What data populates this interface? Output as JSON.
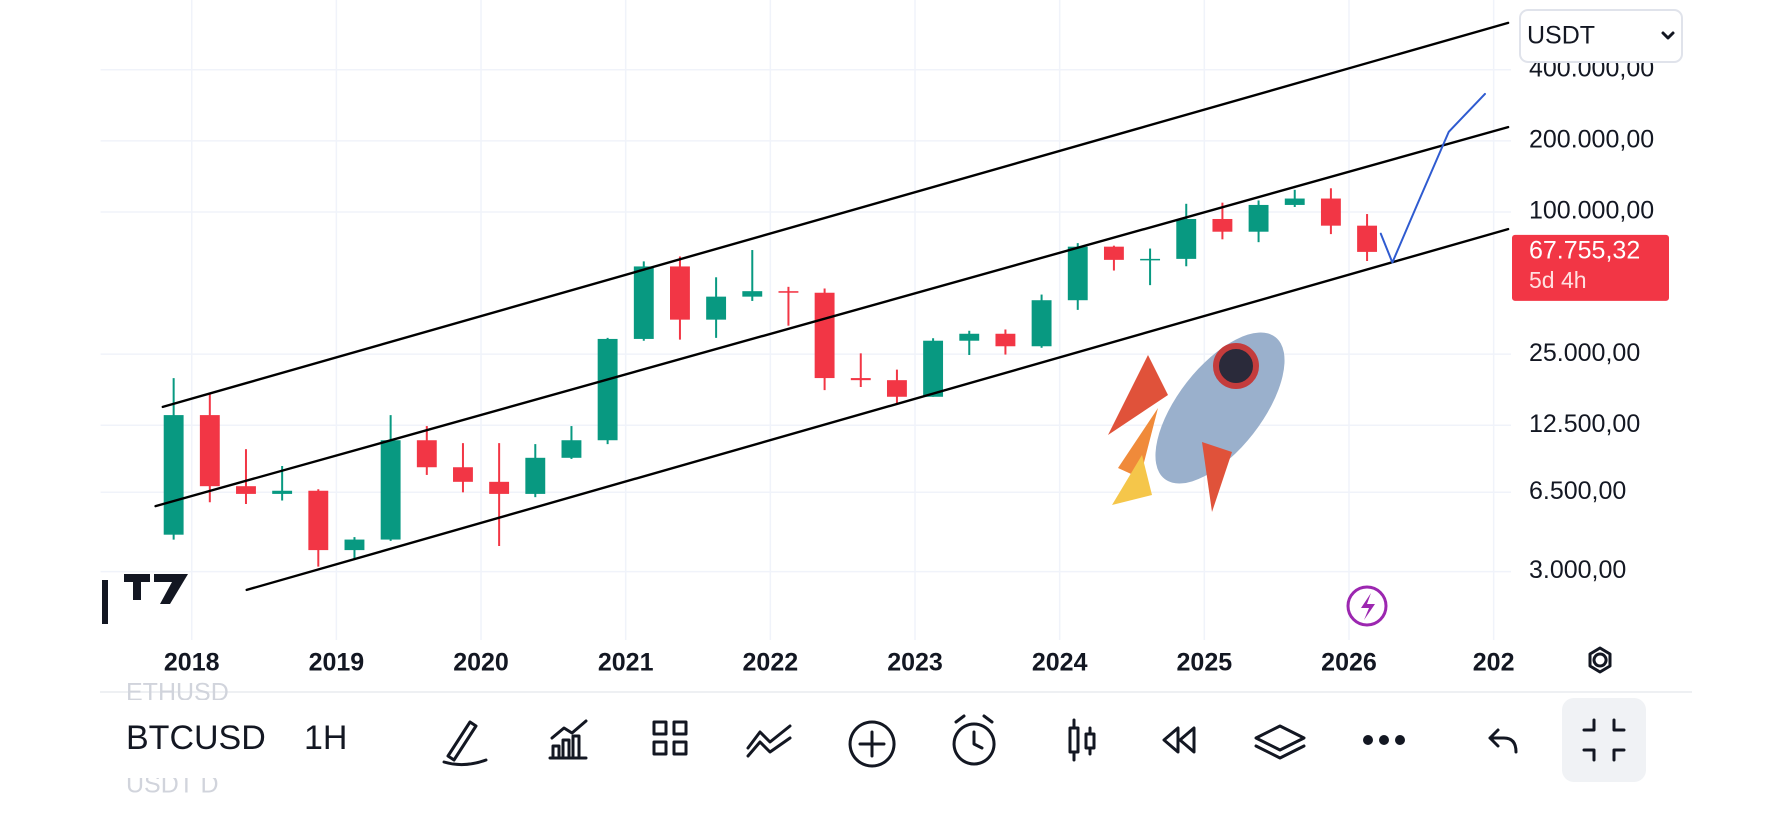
{
  "chart_data": {
    "type": "candlestick",
    "x": [
      2017.875,
      2018.125,
      2018.375,
      2018.625,
      2018.875,
      2019.125,
      2019.375,
      2019.625,
      2019.875,
      2020.125,
      2020.375,
      2020.625,
      2020.875,
      2021.125,
      2021.375,
      2021.625,
      2021.875,
      2022.125,
      2022.375,
      2022.625,
      2022.875,
      2023.125,
      2023.375,
      2023.625,
      2023.875,
      2024.125,
      2024.375,
      2024.625,
      2024.875,
      2025.125,
      2025.375,
      2025.625,
      2025.875,
      2026.125
    ],
    "open": [
      4300,
      13800,
      6900,
      6400,
      6600,
      3700,
      4100,
      10800,
      8300,
      7200,
      6400,
      9100,
      10800,
      29000,
      58800,
      35000,
      43800,
      46200,
      45500,
      19800,
      19400,
      16500,
      28500,
      30500,
      27000,
      42300,
      71300,
      62700,
      63300,
      93400,
      82500,
      107100,
      114000,
      87500
    ],
    "high": [
      19800,
      17200,
      9900,
      8400,
      6700,
      4200,
      13800,
      12400,
      10500,
      10500,
      10400,
      12400,
      29300,
      61800,
      64800,
      52900,
      69000,
      48200,
      47400,
      25200,
      21500,
      29200,
      31400,
      31800,
      44700,
      73800,
      72000,
      70000,
      108300,
      109500,
      111900,
      124100,
      126000,
      98000
    ],
    "low": [
      4100,
      5900,
      5800,
      6000,
      3150,
      3400,
      4050,
      7700,
      6500,
      3850,
      6200,
      9000,
      10400,
      28500,
      28800,
      29300,
      42000,
      33000,
      17600,
      18150,
      15500,
      16500,
      24800,
      24900,
      26600,
      38500,
      56500,
      49000,
      58900,
      76600,
      74500,
      105000,
      80600,
      62000
    ],
    "close": [
      13800,
      6900,
      6400,
      6600,
      3700,
      4100,
      10800,
      8300,
      7200,
      6400,
      9100,
      10800,
      29000,
      58800,
      35000,
      43800,
      46200,
      45500,
      19800,
      19400,
      16500,
      28500,
      30500,
      27000,
      42300,
      71300,
      62700,
      63300,
      93400,
      82500,
      107100,
      114000,
      87500,
      67755.32
    ],
    "up_color": "#089981",
    "down_color": "#f23645",
    "log_scale": true,
    "grid": true,
    "xlim": [
      2017.37,
      2027.12
    ],
    "xticks": [
      2018,
      2019,
      2020,
      2021,
      2022,
      2023,
      2024,
      2025,
      2026,
      {
        "value": 2027,
        "label": "202"
      }
    ],
    "ylim": [
      1540,
      790000
    ],
    "yticks": [
      {
        "value": 400000,
        "label": "400.000,00"
      },
      {
        "value": 200000,
        "label": "200.000,00"
      },
      {
        "value": 100000,
        "label": "100.000,00"
      },
      {
        "value": 25000,
        "label": "25.000,00"
      },
      {
        "value": 12500,
        "label": "12.500,00"
      },
      {
        "value": 6500,
        "label": "6.500,00"
      },
      {
        "value": 3000,
        "label": "3.000,00"
      }
    ],
    "price_label": {
      "value": 67755.32,
      "label": "67.755,32",
      "countdown": "5d 4h",
      "color": "#f23645"
    },
    "drawings": [
      {
        "color": "#000000",
        "x": [
          2017.8,
          2027.1
        ],
        "y": [
          14950,
          632000
        ]
      },
      {
        "color": "#000000",
        "x": [
          2017.75,
          2027.1
        ],
        "y": [
          5680,
          228700
        ]
      },
      {
        "color": "#000000",
        "x": [
          2018.38,
          2027.1
        ],
        "y": [
          2510,
          84600
        ]
      },
      {
        "color": "#2f5bd0",
        "x": [
          2026.22,
          2026.3,
          2026.47,
          2026.69,
          2026.94
        ],
        "y": [
          80900,
          61100,
          106900,
          218600,
          316000
        ]
      }
    ]
  },
  "ui": {
    "currency": "USDT",
    "symbol": "BTCUSD",
    "interval": "1H",
    "watchlist": [
      "ETHUSD",
      "USDT D"
    ]
  }
}
